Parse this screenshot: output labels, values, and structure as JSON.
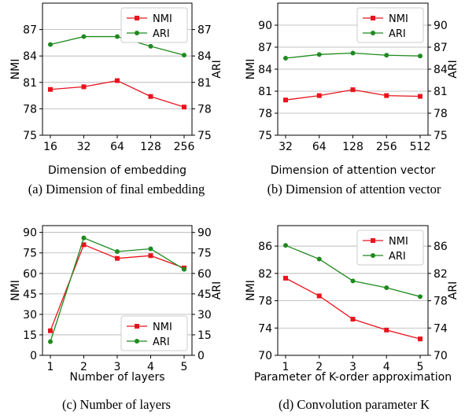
{
  "chart_data": [
    {
      "type": "line",
      "caption": "(a) Dimension of final embedding",
      "xlabel": "Dimension of embedding",
      "ylabel": "NMI",
      "ylabel_right": "ARI",
      "categories": [
        "16",
        "32",
        "64",
        "128",
        "256"
      ],
      "ylim": [
        75,
        90
      ],
      "yticks": [
        75,
        78,
        81,
        84,
        87
      ],
      "grid": true,
      "legend": "top-right",
      "series": [
        {
          "name": "NMI",
          "color": "#e8141c",
          "marker": "square",
          "values": [
            80.2,
            80.5,
            81.2,
            79.4,
            78.2
          ]
        },
        {
          "name": "ARI",
          "color": "#1f8a1f",
          "marker": "circle",
          "values": [
            85.3,
            86.2,
            86.2,
            85.1,
            84.1
          ]
        }
      ]
    },
    {
      "type": "line",
      "caption": "(b) Dimension of attention vector",
      "xlabel": "Dimension of attention vector",
      "ylabel": "NMI",
      "ylabel_right": "ARI",
      "categories": [
        "32",
        "64",
        "128",
        "256",
        "512"
      ],
      "ylim": [
        75,
        93
      ],
      "yticks": [
        75,
        78,
        81,
        84,
        87,
        90
      ],
      "grid": true,
      "legend": "top-right",
      "series": [
        {
          "name": "NMI",
          "color": "#e8141c",
          "marker": "square",
          "values": [
            79.8,
            80.4,
            81.2,
            80.4,
            80.3
          ]
        },
        {
          "name": "ARI",
          "color": "#1f8a1f",
          "marker": "circle",
          "values": [
            85.5,
            86.0,
            86.2,
            85.9,
            85.8
          ]
        }
      ]
    },
    {
      "type": "line",
      "caption": "(c) Number of layers",
      "xlabel": "Number of layers",
      "ylabel": "NMI",
      "ylabel_right": "ARI",
      "categories": [
        "1",
        "2",
        "3",
        "4",
        "5"
      ],
      "ylim": [
        0,
        95
      ],
      "yticks": [
        0,
        15,
        30,
        45,
        60,
        75,
        90
      ],
      "grid": true,
      "legend": "bottom-right",
      "series": [
        {
          "name": "NMI",
          "color": "#e8141c",
          "marker": "square",
          "values": [
            18,
            81,
            71,
            73,
            64
          ]
        },
        {
          "name": "ARI",
          "color": "#1f8a1f",
          "marker": "circle",
          "values": [
            10,
            86,
            76,
            78,
            63
          ]
        }
      ]
    },
    {
      "type": "line",
      "caption": "(d) Convolution parameter K",
      "xlabel": "Parameter of K-order approximation",
      "ylabel": "NMI",
      "ylabel_right": "ARI",
      "categories": [
        "1",
        "2",
        "3",
        "4",
        "5"
      ],
      "ylim": [
        70,
        89
      ],
      "yticks": [
        70,
        74,
        78,
        82,
        86
      ],
      "grid": true,
      "legend": "top-right",
      "series": [
        {
          "name": "NMI",
          "color": "#e8141c",
          "marker": "square",
          "values": [
            81.3,
            78.7,
            75.3,
            73.7,
            72.4
          ]
        },
        {
          "name": "ARI",
          "color": "#1f8a1f",
          "marker": "circle",
          "values": [
            86.1,
            84.1,
            80.9,
            79.9,
            78.6
          ]
        }
      ]
    }
  ]
}
